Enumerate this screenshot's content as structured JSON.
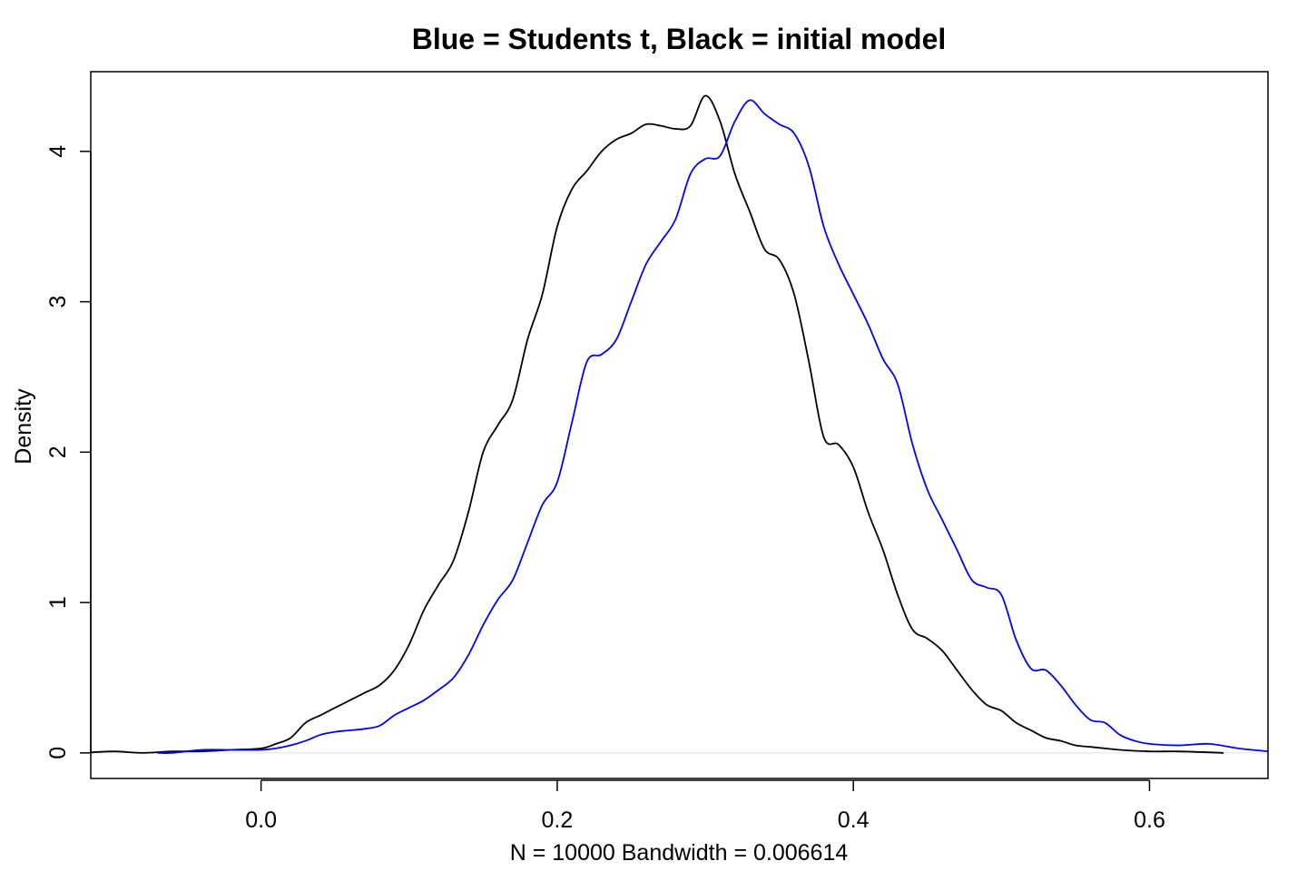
{
  "chart_data": {
    "type": "line",
    "title": "Blue = Students t, Black = initial model",
    "xlabel": "N = 10000   Bandwidth = 0.006614",
    "ylabel": "Density",
    "xlim": [
      -0.115,
      0.68
    ],
    "ylim": [
      -0.17,
      4.53
    ],
    "xticks": [
      0.0,
      0.2,
      0.4,
      0.6
    ],
    "xtick_labels": [
      "0.0",
      "0.2",
      "0.4",
      "0.6"
    ],
    "yticks": [
      0,
      1,
      2,
      3,
      4
    ],
    "ytick_labels": [
      "0",
      "1",
      "2",
      "3",
      "4"
    ],
    "grid": false,
    "legend": "none",
    "baseline": {
      "y": 0,
      "color": "#e6e6e6"
    },
    "series": [
      {
        "color": "#000000",
        "points": [
          [
            -0.12,
            0.0
          ],
          [
            -0.1,
            0.01
          ],
          [
            -0.08,
            0.0
          ],
          [
            -0.06,
            0.01
          ],
          [
            -0.04,
            0.01
          ],
          [
            -0.02,
            0.02
          ],
          [
            0.0,
            0.03
          ],
          [
            0.01,
            0.06
          ],
          [
            0.02,
            0.1
          ],
          [
            0.03,
            0.2
          ],
          [
            0.04,
            0.25
          ],
          [
            0.05,
            0.3
          ],
          [
            0.06,
            0.35
          ],
          [
            0.07,
            0.4
          ],
          [
            0.08,
            0.45
          ],
          [
            0.09,
            0.55
          ],
          [
            0.1,
            0.72
          ],
          [
            0.11,
            0.95
          ],
          [
            0.12,
            1.12
          ],
          [
            0.13,
            1.28
          ],
          [
            0.14,
            1.6
          ],
          [
            0.15,
            2.0
          ],
          [
            0.16,
            2.18
          ],
          [
            0.17,
            2.35
          ],
          [
            0.18,
            2.75
          ],
          [
            0.19,
            3.05
          ],
          [
            0.2,
            3.5
          ],
          [
            0.21,
            3.75
          ],
          [
            0.22,
            3.87
          ],
          [
            0.23,
            4.0
          ],
          [
            0.24,
            4.08
          ],
          [
            0.25,
            4.12
          ],
          [
            0.26,
            4.18
          ],
          [
            0.27,
            4.17
          ],
          [
            0.28,
            4.15
          ],
          [
            0.29,
            4.17
          ],
          [
            0.3,
            4.37
          ],
          [
            0.31,
            4.2
          ],
          [
            0.32,
            3.85
          ],
          [
            0.33,
            3.6
          ],
          [
            0.34,
            3.35
          ],
          [
            0.35,
            3.28
          ],
          [
            0.36,
            3.05
          ],
          [
            0.37,
            2.6
          ],
          [
            0.38,
            2.1
          ],
          [
            0.39,
            2.05
          ],
          [
            0.4,
            1.9
          ],
          [
            0.41,
            1.6
          ],
          [
            0.42,
            1.35
          ],
          [
            0.43,
            1.05
          ],
          [
            0.44,
            0.82
          ],
          [
            0.45,
            0.76
          ],
          [
            0.46,
            0.68
          ],
          [
            0.47,
            0.55
          ],
          [
            0.48,
            0.42
          ],
          [
            0.49,
            0.32
          ],
          [
            0.5,
            0.28
          ],
          [
            0.51,
            0.2
          ],
          [
            0.52,
            0.15
          ],
          [
            0.53,
            0.1
          ],
          [
            0.54,
            0.08
          ],
          [
            0.55,
            0.05
          ],
          [
            0.56,
            0.04
          ],
          [
            0.57,
            0.03
          ],
          [
            0.58,
            0.02
          ],
          [
            0.6,
            0.01
          ],
          [
            0.62,
            0.01
          ],
          [
            0.65,
            0.0
          ]
        ]
      },
      {
        "color": "#0000ff",
        "points": [
          [
            -0.07,
            0.0
          ],
          [
            -0.06,
            0.0
          ],
          [
            -0.04,
            0.02
          ],
          [
            -0.02,
            0.02
          ],
          [
            0.0,
            0.02
          ],
          [
            0.01,
            0.03
          ],
          [
            0.02,
            0.05
          ],
          [
            0.03,
            0.08
          ],
          [
            0.04,
            0.12
          ],
          [
            0.05,
            0.14
          ],
          [
            0.06,
            0.15
          ],
          [
            0.07,
            0.16
          ],
          [
            0.08,
            0.18
          ],
          [
            0.09,
            0.25
          ],
          [
            0.1,
            0.3
          ],
          [
            0.11,
            0.35
          ],
          [
            0.12,
            0.42
          ],
          [
            0.13,
            0.5
          ],
          [
            0.14,
            0.65
          ],
          [
            0.15,
            0.85
          ],
          [
            0.16,
            1.02
          ],
          [
            0.17,
            1.15
          ],
          [
            0.18,
            1.4
          ],
          [
            0.19,
            1.65
          ],
          [
            0.2,
            1.8
          ],
          [
            0.21,
            2.2
          ],
          [
            0.22,
            2.6
          ],
          [
            0.23,
            2.65
          ],
          [
            0.24,
            2.75
          ],
          [
            0.25,
            3.0
          ],
          [
            0.26,
            3.25
          ],
          [
            0.27,
            3.4
          ],
          [
            0.28,
            3.55
          ],
          [
            0.29,
            3.85
          ],
          [
            0.3,
            3.95
          ],
          [
            0.31,
            3.97
          ],
          [
            0.32,
            4.2
          ],
          [
            0.33,
            4.34
          ],
          [
            0.34,
            4.25
          ],
          [
            0.35,
            4.18
          ],
          [
            0.36,
            4.12
          ],
          [
            0.37,
            3.9
          ],
          [
            0.38,
            3.5
          ],
          [
            0.39,
            3.25
          ],
          [
            0.4,
            3.05
          ],
          [
            0.41,
            2.85
          ],
          [
            0.42,
            2.62
          ],
          [
            0.43,
            2.45
          ],
          [
            0.44,
            2.05
          ],
          [
            0.45,
            1.75
          ],
          [
            0.46,
            1.55
          ],
          [
            0.47,
            1.35
          ],
          [
            0.48,
            1.15
          ],
          [
            0.49,
            1.1
          ],
          [
            0.5,
            1.05
          ],
          [
            0.51,
            0.75
          ],
          [
            0.52,
            0.56
          ],
          [
            0.53,
            0.55
          ],
          [
            0.54,
            0.45
          ],
          [
            0.55,
            0.32
          ],
          [
            0.56,
            0.22
          ],
          [
            0.57,
            0.2
          ],
          [
            0.58,
            0.12
          ],
          [
            0.59,
            0.08
          ],
          [
            0.6,
            0.06
          ],
          [
            0.62,
            0.05
          ],
          [
            0.64,
            0.06
          ],
          [
            0.66,
            0.03
          ],
          [
            0.68,
            0.01
          ]
        ]
      }
    ]
  }
}
